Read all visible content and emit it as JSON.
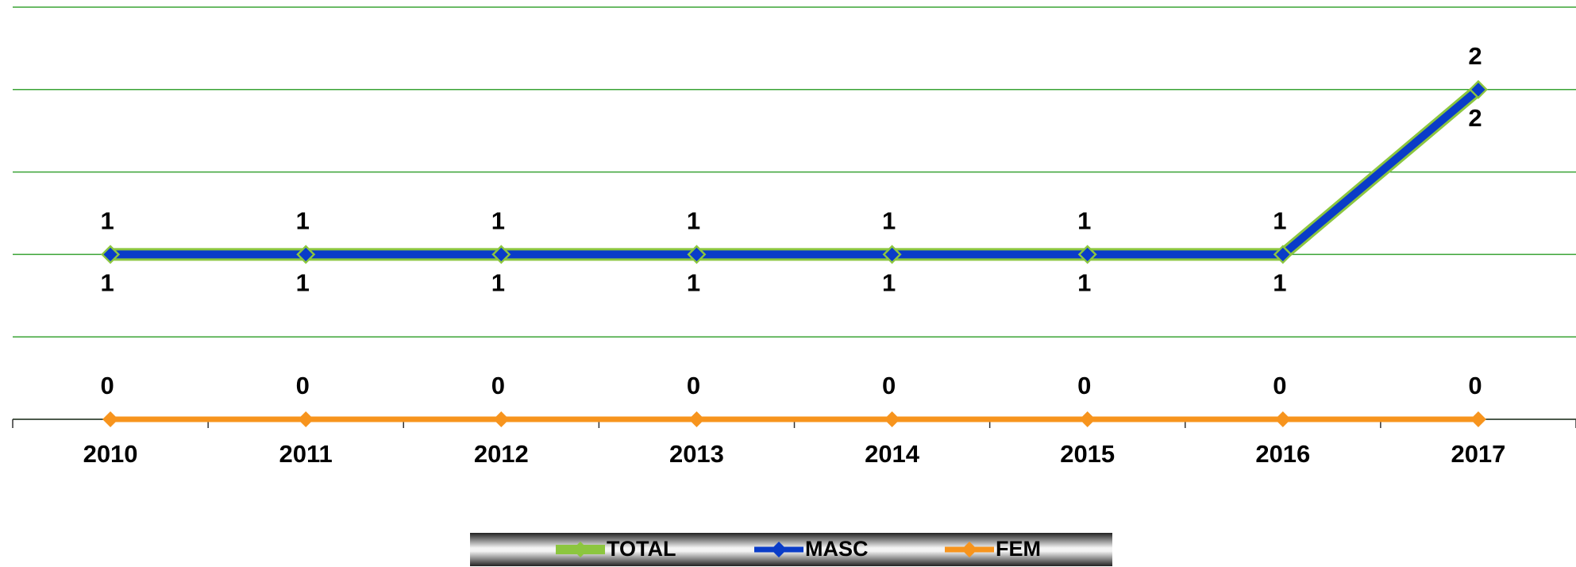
{
  "chart_data": {
    "type": "line",
    "categories": [
      "2010",
      "2011",
      "2012",
      "2013",
      "2014",
      "2015",
      "2016",
      "2017"
    ],
    "series": [
      {
        "name": "TOTAL",
        "color": "#8cc63f",
        "values": [
          1,
          1,
          1,
          1,
          1,
          1,
          1,
          2
        ]
      },
      {
        "name": "MASC",
        "color": "#0a3cc8",
        "values": [
          1,
          1,
          1,
          1,
          1,
          1,
          1,
          2
        ]
      },
      {
        "name": "FEM",
        "color": "#f7941d",
        "values": [
          0,
          0,
          0,
          0,
          0,
          0,
          0,
          0
        ]
      }
    ],
    "ylim": [
      0,
      2.5
    ],
    "yticks": [
      0,
      0.5,
      1,
      1.5,
      2,
      2.5
    ],
    "grid": true,
    "grid_color": "#3aa335",
    "legend": "bottom"
  }
}
